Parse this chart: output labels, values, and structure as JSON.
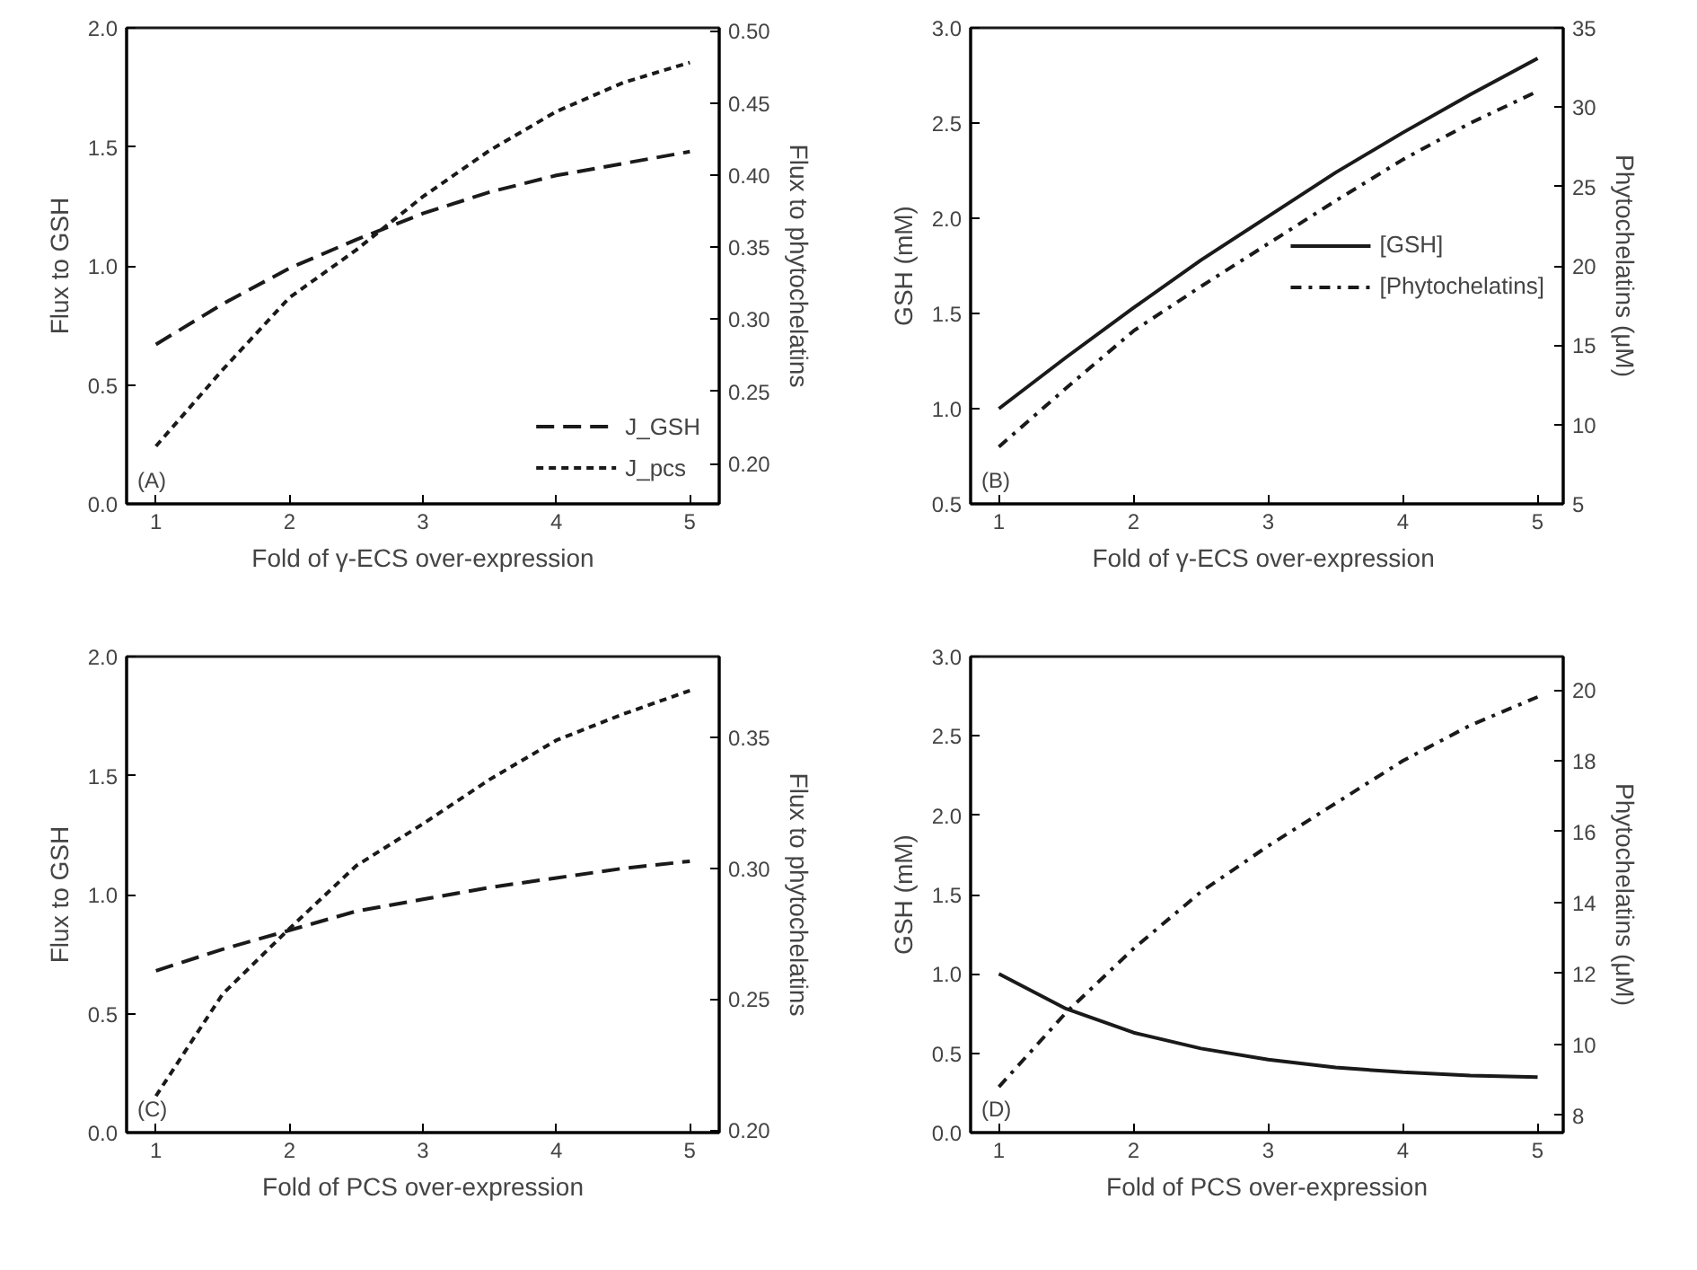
{
  "chart_data": [
    {
      "type": "line",
      "xlabel": "Fold of γ-ECS over-expression",
      "ylabel": "Flux to GSH",
      "y2label": "Flux to phytochelatins",
      "annotations": [
        "(A)"
      ],
      "x": [
        1,
        1.5,
        2,
        2.5,
        3,
        3.5,
        4,
        4.5,
        5
      ],
      "xlim": [
        0.78,
        5.22
      ],
      "xticks": [
        1,
        2,
        3,
        4,
        5
      ],
      "ylim": [
        0,
        2
      ],
      "yticks": [
        {
          "value": 0,
          "label": "0.0"
        },
        0.5,
        {
          "value": 1,
          "label": "1.0"
        },
        1.5,
        {
          "value": 2,
          "label": "2.0"
        }
      ],
      "y2lim": [
        0.172,
        0.502
      ],
      "y2ticks": [
        {
          "value": 0.2,
          "label": "0.20"
        },
        0.25,
        {
          "value": 0.3,
          "label": "0.30"
        },
        0.35,
        {
          "value": 0.4,
          "label": "0.40"
        },
        0.45,
        {
          "value": 0.5,
          "label": "0.50"
        }
      ],
      "legend": "bottom right",
      "grid": false,
      "series": [
        {
          "name": "J_GSH",
          "color": "#1a1a1a",
          "line_style": "dashed",
          "values": [
            0.67,
            0.84,
            0.99,
            1.11,
            1.22,
            1.31,
            1.38,
            1.43,
            1.48
          ]
        },
        {
          "name": "J_pcs",
          "color": "#1a1a1a",
          "line_style": "dotted",
          "axis": "y2",
          "values": [
            0.212,
            0.265,
            0.315,
            0.348,
            0.385,
            0.417,
            0.444,
            0.464,
            0.478
          ]
        }
      ]
    },
    {
      "type": "line",
      "xlabel": "Fold of γ-ECS  over-expression",
      "ylabel": "GSH (mM)",
      "y2label": "Phytochelatins (μM)",
      "annotations": [
        "(B)"
      ],
      "x": [
        1,
        1.5,
        2,
        2.5,
        3,
        3.5,
        4,
        4.5,
        5
      ],
      "xlim": [
        0.79,
        5.19
      ],
      "xticks": [
        1,
        2,
        3,
        4,
        5
      ],
      "ylim": [
        0.5,
        3
      ],
      "yticks": [
        0.5,
        {
          "value": 1,
          "label": "1.0"
        },
        1.5,
        {
          "value": 2,
          "label": "2.0"
        },
        2.5,
        {
          "value": 3,
          "label": "3.0"
        }
      ],
      "y2lim": [
        5,
        35
      ],
      "y2ticks": [
        5,
        10,
        15,
        20,
        25,
        30,
        35
      ],
      "legend": "right",
      "grid": false,
      "series": [
        {
          "name": "[GSH]",
          "color": "#1a1a1a",
          "line_style": "solid",
          "values": [
            1.0,
            1.27,
            1.53,
            1.78,
            2.01,
            2.24,
            2.45,
            2.65,
            2.84
          ]
        },
        {
          "name": "[Phytochelatins]",
          "color": "#1a1a1a",
          "line_style": "dashdot",
          "axis": "y2",
          "values": [
            8.6,
            12.3,
            15.9,
            18.7,
            21.4,
            24.1,
            26.7,
            29.0,
            31.0
          ]
        }
      ]
    },
    {
      "type": "line",
      "xlabel": "Fold of PCS over-expression",
      "ylabel": "Flux to GSH",
      "y2label": "Flux to phytochelatins",
      "annotations": [
        "(C)"
      ],
      "x": [
        1,
        1.5,
        2,
        2.5,
        3,
        3.5,
        4,
        4.5,
        5
      ],
      "xlim": [
        0.78,
        5.22
      ],
      "xticks": [
        1,
        2,
        3,
        4,
        5
      ],
      "ylim": [
        0,
        2
      ],
      "yticks": [
        {
          "value": 0,
          "label": "0.0"
        },
        0.5,
        {
          "value": 1,
          "label": "1.0"
        },
        1.5,
        {
          "value": 2,
          "label": "2.0"
        }
      ],
      "y2lim": [
        0.199,
        0.381
      ],
      "y2ticks": [
        {
          "value": 0.2,
          "label": "0.20"
        },
        0.25,
        {
          "value": 0.3,
          "label": "0.30"
        },
        0.35
      ],
      "legend": false,
      "grid": false,
      "series": [
        {
          "color": "#1a1a1a",
          "line_style": "dashed",
          "values": [
            0.68,
            0.77,
            0.85,
            0.93,
            0.98,
            1.03,
            1.07,
            1.11,
            1.14
          ]
        },
        {
          "color": "#1a1a1a",
          "line_style": "dotted",
          "axis": "y2",
          "values": [
            0.213,
            0.252,
            0.277,
            0.301,
            0.317,
            0.334,
            0.349,
            0.359,
            0.368
          ]
        }
      ]
    },
    {
      "type": "line",
      "xlabel": "Fold of PCS over-expression",
      "ylabel": "GSH (mM)",
      "y2label": "Phytochelatins (μM)",
      "annotations": [
        "(D)"
      ],
      "x": [
        1,
        1.5,
        2,
        2.5,
        3,
        3.5,
        4,
        4.5,
        5
      ],
      "xlim": [
        0.79,
        5.19
      ],
      "xticks": [
        1,
        2,
        3,
        4,
        5
      ],
      "ylim": [
        0,
        3
      ],
      "yticks": [
        {
          "value": 0,
          "label": "0.0"
        },
        0.5,
        {
          "value": 1,
          "label": "1.0"
        },
        1.5,
        {
          "value": 2,
          "label": "2.0"
        },
        2.5,
        {
          "value": 3,
          "label": "3.0"
        }
      ],
      "y2lim": [
        7.51,
        20.94
      ],
      "y2ticks": [
        8,
        10,
        12,
        14,
        16,
        18,
        20
      ],
      "legend": false,
      "grid": false,
      "series": [
        {
          "color": "#1a1a1a",
          "line_style": "solid",
          "values": [
            1.0,
            0.78,
            0.63,
            0.53,
            0.46,
            0.41,
            0.38,
            0.36,
            0.35
          ]
        },
        {
          "color": "#1a1a1a",
          "line_style": "dashdot",
          "axis": "y2",
          "values": [
            8.8,
            10.9,
            12.7,
            14.3,
            15.6,
            16.8,
            18.0,
            19.0,
            19.8
          ]
        }
      ]
    }
  ]
}
